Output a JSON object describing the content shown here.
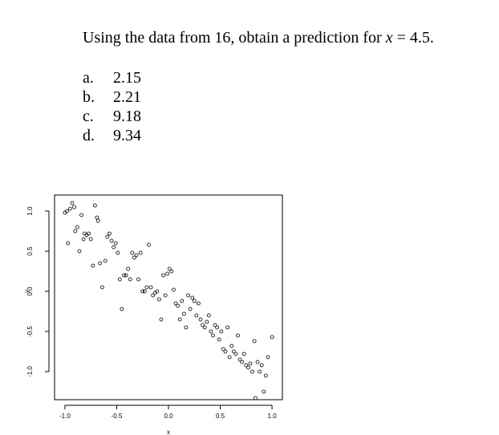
{
  "question": {
    "prefix": "Using the data from 16, obtain a prediction for",
    "variable": "x",
    "suffix": "= 4.5."
  },
  "options": [
    {
      "letter": "a.",
      "value": "2.15"
    },
    {
      "letter": "b.",
      "value": "2.21"
    },
    {
      "letter": "c.",
      "value": "9.18"
    },
    {
      "letter": "d.",
      "value": "9.34"
    }
  ],
  "chart_data": {
    "type": "scatter",
    "xlabel": "x",
    "ylabel": "y",
    "xlim": [
      -1.1,
      1.1
    ],
    "ylim": [
      -1.35,
      1.2
    ],
    "xticks": [
      "-1.0",
      "-0.5",
      "0.0",
      "0.5",
      "1.0"
    ],
    "xtick_values": [
      -1.0,
      -0.5,
      0.0,
      0.5,
      1.0
    ],
    "yticks": [
      "-1.0",
      "-0.5",
      "0.0",
      "0.5",
      "1.0"
    ],
    "ytick_values": [
      -1.0,
      -0.5,
      0.0,
      0.5,
      1.0
    ],
    "marker": "open-circle",
    "points": [
      [
        -1.0,
        0.98
      ],
      [
        -0.98,
        1.0
      ],
      [
        -0.95,
        1.03
      ],
      [
        -0.93,
        1.1
      ],
      [
        -0.91,
        1.05
      ],
      [
        -0.97,
        0.6
      ],
      [
        -0.9,
        0.75
      ],
      [
        -0.88,
        0.8
      ],
      [
        -0.86,
        0.5
      ],
      [
        -0.84,
        0.95
      ],
      [
        -0.82,
        0.65
      ],
      [
        -0.81,
        0.72
      ],
      [
        -0.79,
        0.7
      ],
      [
        -0.77,
        0.72
      ],
      [
        -0.75,
        0.65
      ],
      [
        -0.73,
        0.32
      ],
      [
        -0.71,
        1.07
      ],
      [
        -0.69,
        0.92
      ],
      [
        -0.68,
        0.88
      ],
      [
        -0.66,
        0.35
      ],
      [
        -0.64,
        0.05
      ],
      [
        -0.61,
        0.38
      ],
      [
        -0.59,
        0.68
      ],
      [
        -0.57,
        0.72
      ],
      [
        -0.55,
        0.63
      ],
      [
        -0.53,
        0.55
      ],
      [
        -0.51,
        0.6
      ],
      [
        -0.49,
        0.48
      ],
      [
        -0.47,
        0.15
      ],
      [
        -0.45,
        -0.22
      ],
      [
        -0.43,
        0.2
      ],
      [
        -0.41,
        0.2
      ],
      [
        -0.39,
        0.28
      ],
      [
        -0.37,
        0.15
      ],
      [
        -0.35,
        0.48
      ],
      [
        -0.33,
        0.42
      ],
      [
        -0.31,
        0.45
      ],
      [
        -0.29,
        0.15
      ],
      [
        -0.27,
        0.48
      ],
      [
        -0.25,
        0.0
      ],
      [
        -0.23,
        0.0
      ],
      [
        -0.21,
        0.05
      ],
      [
        -0.19,
        0.58
      ],
      [
        -0.17,
        0.05
      ],
      [
        -0.15,
        -0.05
      ],
      [
        -0.13,
        -0.02
      ],
      [
        -0.11,
        0.0
      ],
      [
        -0.09,
        -0.1
      ],
      [
        -0.07,
        -0.35
      ],
      [
        -0.05,
        0.2
      ],
      [
        -0.03,
        -0.05
      ],
      [
        -0.01,
        0.22
      ],
      [
        0.01,
        0.28
      ],
      [
        0.03,
        0.25
      ],
      [
        0.05,
        0.02
      ],
      [
        0.07,
        -0.15
      ],
      [
        0.09,
        -0.18
      ],
      [
        0.11,
        -0.35
      ],
      [
        0.13,
        -0.12
      ],
      [
        0.15,
        -0.28
      ],
      [
        0.17,
        -0.45
      ],
      [
        0.19,
        -0.05
      ],
      [
        0.21,
        -0.22
      ],
      [
        0.23,
        -0.08
      ],
      [
        0.25,
        -0.12
      ],
      [
        0.27,
        -0.3
      ],
      [
        0.29,
        -0.15
      ],
      [
        0.31,
        -0.35
      ],
      [
        0.33,
        -0.42
      ],
      [
        0.35,
        -0.45
      ],
      [
        0.37,
        -0.38
      ],
      [
        0.39,
        -0.3
      ],
      [
        0.41,
        -0.5
      ],
      [
        0.43,
        -0.55
      ],
      [
        0.45,
        -0.42
      ],
      [
        0.47,
        -0.45
      ],
      [
        0.49,
        -0.6
      ],
      [
        0.51,
        -0.5
      ],
      [
        0.53,
        -0.72
      ],
      [
        0.55,
        -0.75
      ],
      [
        0.57,
        -0.45
      ],
      [
        0.59,
        -0.82
      ],
      [
        0.61,
        -0.68
      ],
      [
        0.63,
        -0.75
      ],
      [
        0.65,
        -0.78
      ],
      [
        0.67,
        -0.55
      ],
      [
        0.69,
        -0.85
      ],
      [
        0.71,
        -0.88
      ],
      [
        0.73,
        -0.78
      ],
      [
        0.75,
        -0.92
      ],
      [
        0.77,
        -0.95
      ],
      [
        0.79,
        -0.9
      ],
      [
        0.81,
        -1.0
      ],
      [
        0.83,
        -0.62
      ],
      [
        0.84,
        -1.33
      ],
      [
        0.86,
        -0.88
      ],
      [
        0.88,
        -1.0
      ],
      [
        0.9,
        -0.92
      ],
      [
        0.92,
        -1.25
      ],
      [
        0.94,
        -1.05
      ],
      [
        1.0,
        -0.57
      ],
      [
        0.96,
        -0.82
      ]
    ]
  }
}
